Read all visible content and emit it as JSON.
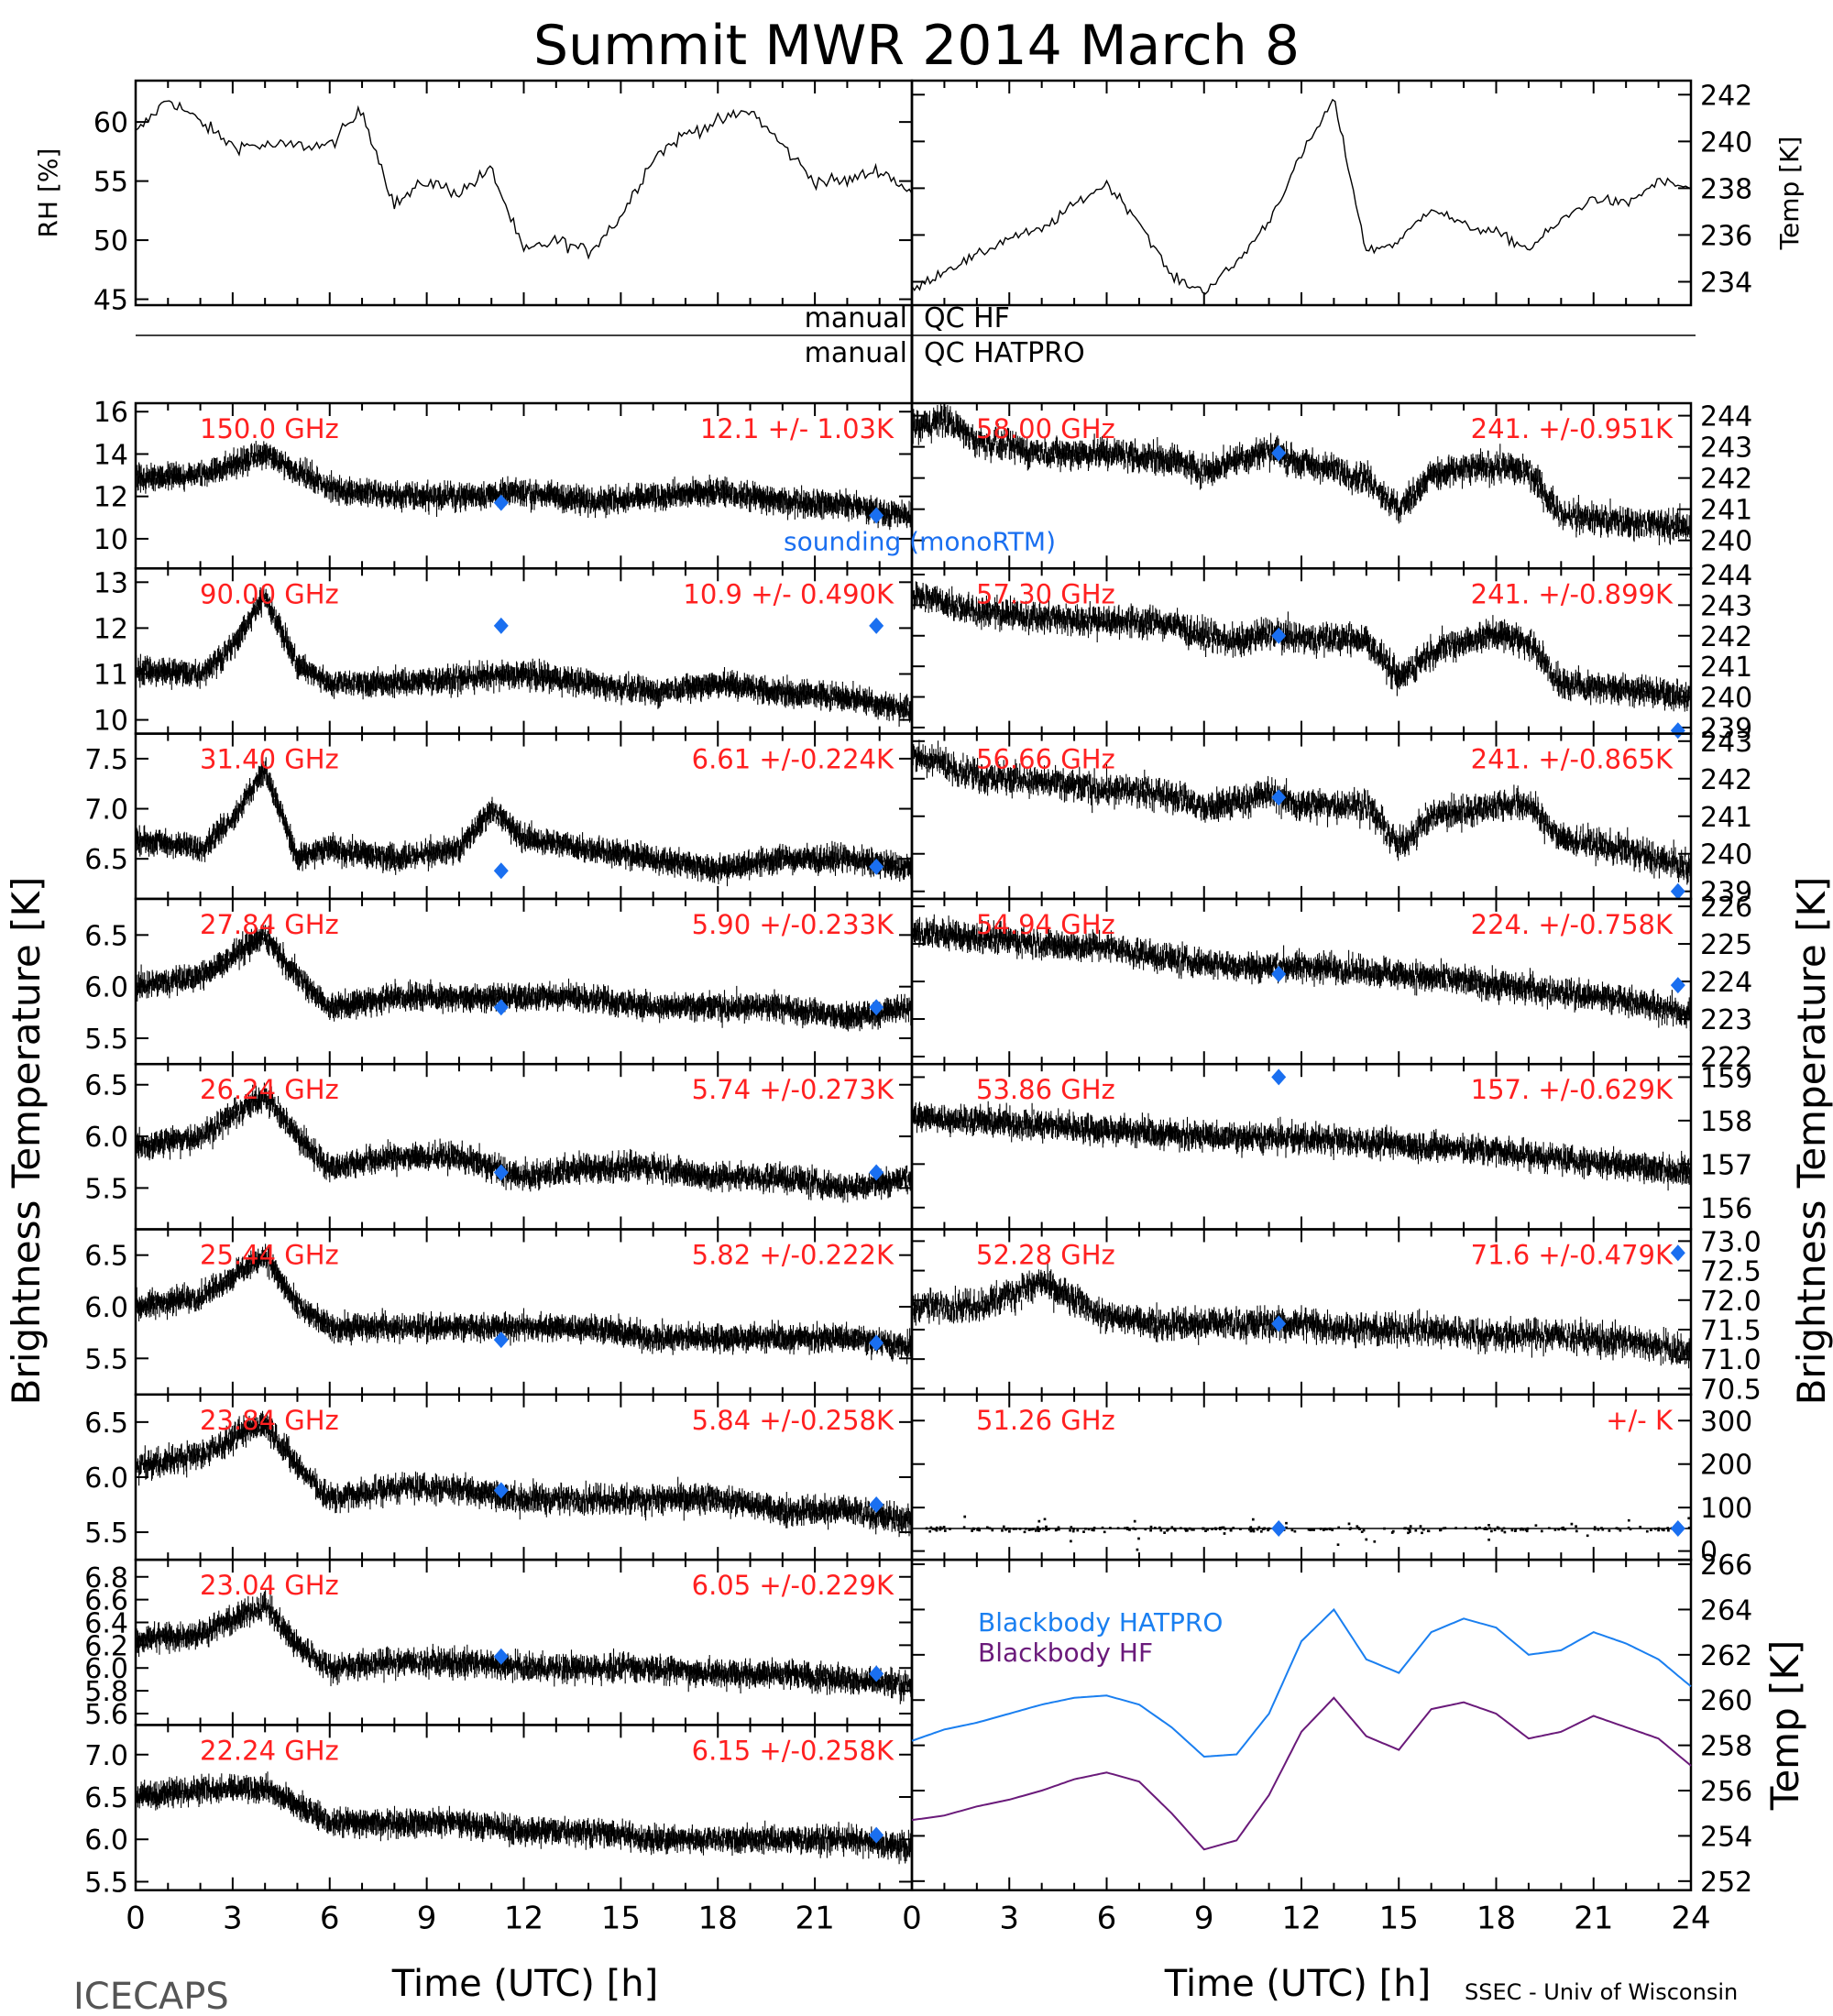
{
  "title": "Summit MWR 2014 March  8",
  "footer": {
    "left": "ICECAPS",
    "right": "SSEC - Univ of Wisconsin"
  },
  "x_axis": {
    "label": "Time (UTC) [h]",
    "ticks_left": [
      "0",
      "3",
      "6",
      "9",
      "12",
      "15",
      "18",
      "21"
    ],
    "ticks_right": [
      "0",
      "3",
      "6",
      "9",
      "12",
      "15",
      "18",
      "21",
      "24"
    ],
    "range": [
      0,
      24
    ]
  },
  "y_axis_labels": {
    "left": "Brightness Temperature [K]",
    "right": "Brightness Temperature [K]"
  },
  "qc_rows": [
    {
      "left": "manual",
      "right": "QC HF"
    },
    {
      "left": "manual",
      "right": "QC HATPRO"
    }
  ],
  "sounding_label": "sounding (monoRTM)",
  "colors": {
    "trace": "#000000",
    "label": "#ff2020",
    "sounding": "#1a6ff0",
    "bb_hatpro": "#1a7ff0",
    "bb_hf": "#6a1a7a"
  },
  "chart_data": [
    {
      "type": "line",
      "panel": "rh",
      "ylabel": "RH [%]",
      "ylim": [
        44.5,
        63.5
      ],
      "yticks": [
        "45",
        "50",
        "55",
        "60"
      ],
      "x": [
        0,
        1,
        2,
        3,
        4,
        5,
        6,
        7,
        8,
        9,
        10,
        11,
        12,
        13,
        14,
        15,
        16,
        17,
        18,
        19,
        20,
        21,
        22,
        23,
        24
      ],
      "series": [
        {
          "values": [
            59,
            62,
            60,
            58,
            58,
            58,
            58,
            61,
            53,
            55,
            54,
            56,
            49,
            50,
            49,
            52,
            57,
            59,
            60,
            61,
            58,
            55,
            55,
            56,
            54
          ]
        }
      ]
    },
    {
      "type": "line",
      "panel": "temp",
      "ylabel": "Temp [K]",
      "ylim": [
        233.0,
        242.6
      ],
      "yticks": [
        "234",
        "236",
        "238",
        "240",
        "242"
      ],
      "x": [
        0,
        1,
        2,
        3,
        4,
        5,
        6,
        7,
        8,
        9,
        10,
        11,
        12,
        13,
        14,
        15,
        16,
        17,
        18,
        19,
        20,
        21,
        22,
        23,
        24
      ],
      "series": [
        {
          "values": [
            233.6,
            234.5,
            235.1,
            235.9,
            236.2,
            237.3,
            238.2,
            236.6,
            234.2,
            233.6,
            234.8,
            236.6,
            239.4,
            241.8,
            235.3,
            235.7,
            237.2,
            236.4,
            236.1,
            235.4,
            236.6,
            237.6,
            237.3,
            238.3,
            238.0
          ]
        }
      ]
    },
    {
      "type": "scatter",
      "label": "150.0 GHz",
      "stat": "12.1 +/-  1.03K",
      "ylim": [
        8.6,
        16.4
      ],
      "yticks": [
        "10",
        "12",
        "14",
        "16"
      ],
      "x": [
        0,
        2,
        4,
        6,
        8,
        10,
        12,
        14,
        16,
        18,
        20,
        22,
        24
      ],
      "values": [
        12.8,
        13.0,
        14.0,
        12.4,
        12.0,
        12.0,
        12.2,
        11.8,
        12.0,
        12.2,
        11.8,
        11.6,
        11.0
      ],
      "noise": 0.9,
      "sounding": [
        {
          "x": 11.3,
          "y": 11.7
        },
        {
          "x": 22.9,
          "y": 11.1
        }
      ]
    },
    {
      "type": "scatter",
      "label": "90.00 GHz",
      "stat": "10.9 +/- 0.490K",
      "ylim": [
        9.7,
        13.3
      ],
      "yticks": [
        "10",
        "11",
        "12",
        "13"
      ],
      "x": [
        0,
        2,
        3,
        4,
        5,
        6,
        8,
        10,
        12,
        14,
        16,
        18,
        20,
        22,
        24
      ],
      "values": [
        11.1,
        11.0,
        11.6,
        12.7,
        11.2,
        10.8,
        10.8,
        10.9,
        11.0,
        10.8,
        10.6,
        10.8,
        10.6,
        10.5,
        10.2
      ],
      "noise": 0.4,
      "sounding": [
        {
          "x": 11.3,
          "y": 12.05
        },
        {
          "x": 22.9,
          "y": 12.05
        }
      ]
    },
    {
      "type": "scatter",
      "label": "31.40 GHz",
      "stat": "6.61 +/-0.224K",
      "ylim": [
        6.1,
        7.75
      ],
      "yticks": [
        "6.5",
        "7.0",
        "7.5"
      ],
      "x": [
        0,
        2,
        3,
        4,
        5,
        6,
        8,
        10,
        11,
        12,
        14,
        16,
        18,
        20,
        22,
        24
      ],
      "values": [
        6.7,
        6.6,
        6.9,
        7.4,
        6.5,
        6.6,
        6.5,
        6.6,
        7.0,
        6.7,
        6.6,
        6.5,
        6.4,
        6.5,
        6.5,
        6.4
      ],
      "noise": 0.18,
      "sounding": [
        {
          "x": 11.3,
          "y": 6.38
        },
        {
          "x": 22.9,
          "y": 6.42
        }
      ]
    },
    {
      "type": "scatter",
      "label": "27.84 GHz",
      "stat": "5.90 +/-0.233K",
      "ylim": [
        5.25,
        6.85
      ],
      "yticks": [
        "5.5",
        "6.0",
        "6.5"
      ],
      "x": [
        0,
        2,
        4,
        5,
        6,
        8,
        10,
        12,
        14,
        16,
        18,
        20,
        22,
        24
      ],
      "values": [
        6.0,
        6.1,
        6.5,
        6.1,
        5.8,
        5.9,
        5.9,
        5.9,
        5.9,
        5.8,
        5.8,
        5.8,
        5.7,
        5.8
      ],
      "noise": 0.18,
      "sounding": [
        {
          "x": 11.3,
          "y": 5.8
        },
        {
          "x": 22.9,
          "y": 5.8
        }
      ]
    },
    {
      "type": "scatter",
      "label": "26.24 GHz",
      "stat": "5.74 +/-0.273K",
      "ylim": [
        5.1,
        6.7
      ],
      "yticks": [
        "5.5",
        "6.0",
        "6.5"
      ],
      "x": [
        0,
        2,
        4,
        5,
        6,
        8,
        10,
        12,
        14,
        16,
        18,
        20,
        22,
        24
      ],
      "values": [
        5.9,
        6.0,
        6.4,
        6.0,
        5.7,
        5.8,
        5.8,
        5.6,
        5.7,
        5.7,
        5.6,
        5.6,
        5.5,
        5.6
      ],
      "noise": 0.2,
      "sounding": [
        {
          "x": 11.3,
          "y": 5.65
        },
        {
          "x": 22.9,
          "y": 5.65
        }
      ]
    },
    {
      "type": "scatter",
      "label": "25.44 GHz",
      "stat": "5.82 +/-0.222K",
      "ylim": [
        5.15,
        6.75
      ],
      "yticks": [
        "5.5",
        "6.0",
        "6.5"
      ],
      "x": [
        0,
        2,
        4,
        5,
        6,
        8,
        10,
        12,
        14,
        16,
        18,
        20,
        22,
        24
      ],
      "values": [
        6.0,
        6.1,
        6.5,
        6.0,
        5.8,
        5.8,
        5.8,
        5.8,
        5.8,
        5.7,
        5.7,
        5.7,
        5.7,
        5.6
      ],
      "noise": 0.18,
      "sounding": [
        {
          "x": 11.3,
          "y": 5.68
        },
        {
          "x": 22.9,
          "y": 5.65
        }
      ]
    },
    {
      "type": "scatter",
      "label": "23.84 GHz",
      "stat": "5.84 +/-0.258K",
      "ylim": [
        5.25,
        6.75
      ],
      "yticks": [
        "5.5",
        "6.0",
        "6.5"
      ],
      "x": [
        0,
        2,
        4,
        5,
        6,
        8,
        10,
        12,
        14,
        16,
        18,
        20,
        22,
        24
      ],
      "values": [
        6.1,
        6.2,
        6.5,
        6.1,
        5.8,
        5.9,
        5.9,
        5.8,
        5.8,
        5.8,
        5.8,
        5.7,
        5.7,
        5.6
      ],
      "noise": 0.2,
      "sounding": [
        {
          "x": 11.3,
          "y": 5.88
        },
        {
          "x": 22.9,
          "y": 5.75
        }
      ]
    },
    {
      "type": "scatter",
      "label": "23.04 GHz",
      "stat": "6.05 +/-0.229K",
      "ylim": [
        5.5,
        6.95
      ],
      "yticks": [
        "5.6",
        "5.8",
        "6.0",
        "6.2",
        "6.4",
        "6.6",
        "6.8"
      ],
      "x": [
        0,
        2,
        4,
        5,
        6,
        8,
        10,
        12,
        14,
        16,
        18,
        20,
        22,
        24
      ],
      "values": [
        6.25,
        6.3,
        6.55,
        6.2,
        6.0,
        6.05,
        6.05,
        6.0,
        6.0,
        6.0,
        5.95,
        5.95,
        5.9,
        5.85
      ],
      "noise": 0.18,
      "sounding": [
        {
          "x": 11.3,
          "y": 6.1
        },
        {
          "x": 22.9,
          "y": 5.95
        }
      ]
    },
    {
      "type": "scatter",
      "label": "22.24 GHz",
      "stat": "6.15 +/-0.258K",
      "ylim": [
        5.4,
        7.35
      ],
      "yticks": [
        "5.5",
        "6.0",
        "6.5",
        "7.0"
      ],
      "x": [
        0,
        2,
        4,
        5,
        6,
        8,
        10,
        12,
        14,
        16,
        18,
        20,
        22,
        24
      ],
      "values": [
        6.5,
        6.6,
        6.6,
        6.4,
        6.2,
        6.2,
        6.2,
        6.1,
        6.1,
        6.0,
        6.0,
        6.0,
        6.0,
        5.9
      ],
      "noise": 0.22,
      "sounding": [
        {
          "x": 22.9,
          "y": 6.05
        }
      ]
    },
    {
      "type": "scatter",
      "label": "58.00 GHz",
      "stat": "241. +/-0.951K",
      "ylim": [
        239.1,
        244.4
      ],
      "yticks": [
        "240",
        "241",
        "242",
        "243",
        "244"
      ],
      "x": [
        0,
        1,
        2,
        4,
        6,
        8,
        9,
        10,
        11,
        12,
        14,
        15,
        16,
        18,
        19,
        20,
        22,
        24
      ],
      "values": [
        243.6,
        243.9,
        243.2,
        242.8,
        242.8,
        242.6,
        242.2,
        242.6,
        242.9,
        242.5,
        242.0,
        241.0,
        242.1,
        242.4,
        242.2,
        240.8,
        240.6,
        240.4
      ],
      "noise": 0.8,
      "sounding": [
        {
          "x": 11.3,
          "y": 242.8
        }
      ]
    },
    {
      "type": "scatter",
      "label": "57.30 GHz",
      "stat": "241. +/-0.899K",
      "ylim": [
        238.8,
        244.2
      ],
      "yticks": [
        "239",
        "240",
        "241",
        "242",
        "243",
        "244"
      ],
      "x": [
        0,
        1,
        2,
        4,
        6,
        8,
        9,
        10,
        11,
        12,
        14,
        15,
        16,
        18,
        19,
        20,
        22,
        24
      ],
      "values": [
        243.3,
        243.1,
        242.8,
        242.6,
        242.5,
        242.4,
        242.0,
        241.8,
        242.1,
        241.9,
        241.9,
        240.6,
        241.5,
        242.1,
        241.8,
        240.4,
        240.3,
        240.0
      ],
      "noise": 0.8,
      "sounding": [
        {
          "x": 11.3,
          "y": 242.0
        },
        {
          "x": 23.6,
          "y": 238.9
        }
      ]
    },
    {
      "type": "scatter",
      "label": "56.66 GHz",
      "stat": "241. +/-0.865K",
      "ylim": [
        238.8,
        243.2
      ],
      "yticks": [
        "239",
        "240",
        "241",
        "242",
        "243"
      ],
      "x": [
        0,
        1,
        2,
        4,
        6,
        8,
        9,
        10,
        11,
        12,
        14,
        15,
        16,
        18,
        19,
        20,
        22,
        24
      ],
      "values": [
        242.6,
        242.4,
        242.1,
        241.9,
        241.7,
        241.6,
        241.2,
        241.4,
        241.6,
        241.3,
        241.3,
        240.2,
        241.0,
        241.3,
        241.3,
        240.4,
        240.1,
        239.6
      ],
      "noise": 0.7,
      "sounding": [
        {
          "x": 11.3,
          "y": 241.5
        },
        {
          "x": 23.6,
          "y": 239.0
        }
      ]
    },
    {
      "type": "scatter",
      "label": "54.94 GHz",
      "stat": "224. +/-0.758K",
      "ylim": [
        221.8,
        226.2
      ],
      "yticks": [
        "222",
        "223",
        "224",
        "225",
        "226"
      ],
      "x": [
        0,
        2,
        4,
        6,
        8,
        10,
        12,
        14,
        16,
        18,
        20,
        22,
        24
      ],
      "values": [
        225.3,
        225.2,
        225.0,
        224.9,
        224.6,
        224.4,
        224.4,
        224.3,
        224.1,
        223.9,
        223.7,
        223.5,
        223.1
      ],
      "noise": 0.6,
      "sounding": [
        {
          "x": 11.3,
          "y": 224.2
        },
        {
          "x": 23.6,
          "y": 223.9
        }
      ]
    },
    {
      "type": "scatter",
      "label": "53.86 GHz",
      "stat": "157. +/-0.629K",
      "ylim": [
        155.5,
        159.3
      ],
      "yticks": [
        "156",
        "157",
        "158",
        "159"
      ],
      "x": [
        0,
        2,
        4,
        6,
        8,
        10,
        12,
        14,
        16,
        18,
        20,
        22,
        24
      ],
      "values": [
        158.1,
        158.0,
        157.9,
        157.8,
        157.7,
        157.6,
        157.6,
        157.5,
        157.4,
        157.3,
        157.1,
        157.0,
        156.8
      ],
      "noise": 0.5,
      "sounding": [
        {
          "x": 11.3,
          "y": 159.0
        }
      ]
    },
    {
      "type": "scatter",
      "label": "52.28 GHz",
      "stat": "71.6 +/-0.479K",
      "ylim": [
        70.4,
        73.2
      ],
      "yticks": [
        "70.5",
        "71.0",
        "71.5",
        "72.0",
        "72.5",
        "73.0"
      ],
      "x": [
        0,
        2,
        4,
        6,
        8,
        10,
        12,
        14,
        16,
        18,
        20,
        22,
        24
      ],
      "values": [
        71.9,
        71.9,
        72.3,
        71.7,
        71.6,
        71.6,
        71.6,
        71.5,
        71.5,
        71.4,
        71.4,
        71.3,
        71.1
      ],
      "noise": 0.45,
      "sounding": [
        {
          "x": 11.3,
          "y": 71.6
        },
        {
          "x": 23.6,
          "y": 72.8
        }
      ]
    },
    {
      "type": "scatter",
      "label": "51.26 GHz",
      "stat": "+/-       K",
      "ylim": [
        -20,
        360
      ],
      "yticks": [
        "0",
        "100",
        "200",
        "300"
      ],
      "x": [
        0,
        24
      ],
      "values": [
        52,
        52
      ],
      "noise": 3,
      "sounding": [
        {
          "x": 11.3,
          "y": 52
        },
        {
          "x": 23.6,
          "y": 52
        }
      ]
    },
    {
      "type": "line",
      "panel": "blackbody",
      "ylabel": "Temp [K]",
      "ylim": [
        251.6,
        266.2
      ],
      "yticks": [
        "252",
        "254",
        "256",
        "258",
        "260",
        "262",
        "264",
        "266"
      ],
      "x": [
        0,
        1,
        2,
        3,
        4,
        5,
        6,
        7,
        8,
        9,
        10,
        11,
        12,
        13,
        14,
        15,
        16,
        17,
        18,
        19,
        20,
        21,
        22,
        23,
        24
      ],
      "series": [
        {
          "name": "Blackbody HATPRO",
          "values": [
            258.2,
            258.7,
            259.0,
            259.4,
            259.8,
            260.1,
            260.2,
            259.8,
            258.8,
            257.5,
            257.6,
            259.4,
            262.6,
            264.0,
            261.8,
            261.2,
            263.0,
            263.6,
            263.2,
            262.0,
            262.2,
            263.0,
            262.5,
            261.8,
            260.6
          ]
        },
        {
          "name": "Blackbody HF",
          "values": [
            254.7,
            254.9,
            255.3,
            255.6,
            256.0,
            256.5,
            256.8,
            256.4,
            255.0,
            253.4,
            253.8,
            255.8,
            258.6,
            260.1,
            258.4,
            257.8,
            259.6,
            259.9,
            259.4,
            258.3,
            258.6,
            259.3,
            258.8,
            258.3,
            257.1
          ]
        }
      ]
    }
  ]
}
